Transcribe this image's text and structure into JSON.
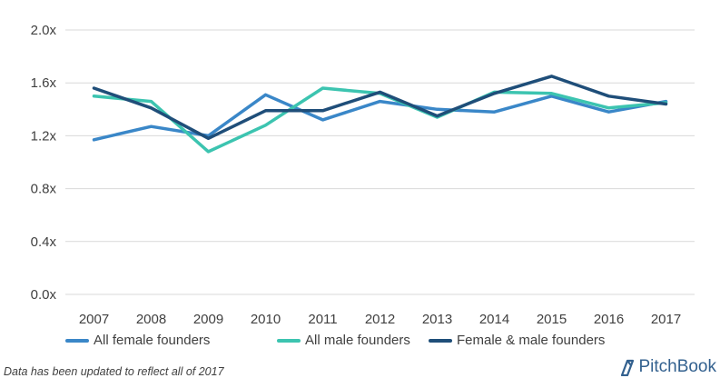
{
  "chart_data": {
    "type": "line",
    "title": "",
    "xlabel": "",
    "ylabel": "",
    "categories": [
      "2007",
      "2008",
      "2009",
      "2010",
      "2011",
      "2012",
      "2013",
      "2014",
      "2015",
      "2016",
      "2017"
    ],
    "ylim": [
      0,
      2.0
    ],
    "yticks": [
      0,
      0.4,
      0.8,
      1.2,
      1.6,
      2.0
    ],
    "ytick_labels": [
      "0.0x",
      "0.4x",
      "0.8x",
      "1.2x",
      "1.6x",
      "2.0x"
    ],
    "grid": "horizontal",
    "legend_position": "bottom",
    "series": [
      {
        "name": "All female founders",
        "color": "#3a87c8",
        "values": [
          1.17,
          1.27,
          1.2,
          1.51,
          1.32,
          1.46,
          1.4,
          1.38,
          1.5,
          1.38,
          1.46
        ]
      },
      {
        "name": "All male founders",
        "color": "#3cc4b0",
        "values": [
          1.5,
          1.46,
          1.08,
          1.28,
          1.56,
          1.52,
          1.34,
          1.53,
          1.52,
          1.41,
          1.45
        ]
      },
      {
        "name": "Female & male founders",
        "color": "#1f4e79",
        "values": [
          1.56,
          1.41,
          1.18,
          1.39,
          1.39,
          1.53,
          1.35,
          1.52,
          1.65,
          1.5,
          1.44
        ]
      }
    ]
  },
  "footnote": "Data has been updated to reflect all of 2017",
  "brand": {
    "name": "PitchBook",
    "icon": "pitchbook-logo-icon",
    "color": "#33618f"
  }
}
